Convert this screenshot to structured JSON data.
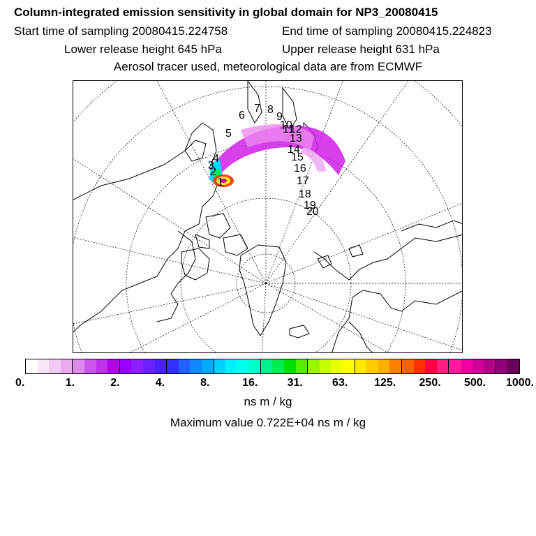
{
  "title": "Column-integrated emission sensitivity in global domain for NP3_20080415",
  "start_label": "Start time of sampling 20080415.224758",
  "end_label": "End time of sampling 20080415.224823",
  "lower_label": "Lower release height  645 hPa",
  "upper_label": "Upper release height  631 hPa",
  "info_line": "Aerosol tracer used, meteorological data are from ECMWF",
  "colorbar": {
    "colors": [
      "#ffffff",
      "#f8e6f8",
      "#f3c9f5",
      "#eaaaf0",
      "#df88ec",
      "#cc55e8",
      "#c033ee",
      "#b000f2",
      "#9a00ff",
      "#8a20ff",
      "#6a20ff",
      "#4a20ff",
      "#2f2fff",
      "#2060ff",
      "#1188ff",
      "#00aaff",
      "#00d0ff",
      "#00f0ff",
      "#00ffee",
      "#00ffcc",
      "#00f090",
      "#00ee55",
      "#00e000",
      "#55ee00",
      "#99f500",
      "#c8ff00",
      "#e8ff00",
      "#ffff00",
      "#ffe800",
      "#ffcc00",
      "#ffb000",
      "#ff8000",
      "#ff6000",
      "#ff3000",
      "#ff0040",
      "#ff1f80",
      "#ff1aa0",
      "#f000a0",
      "#d0009a",
      "#b0008a",
      "#900078",
      "#6a005a"
    ],
    "tick_labels": [
      "0.",
      "1.",
      "2.",
      "4.",
      "8.",
      "16.",
      "31.",
      "63.",
      "125.",
      "250.",
      "500.",
      "1000."
    ]
  },
  "units": "ns m / kg",
  "max_value_label": "Maximum value  0.722E+04 ns m / kg",
  "trajectory_labels": [
    "1",
    "2",
    "3",
    "4",
    "5",
    "6",
    "7",
    "8",
    "9",
    "10",
    "11",
    "12",
    "13",
    "14",
    "15",
    "16",
    "17",
    "18",
    "19",
    "20"
  ]
}
